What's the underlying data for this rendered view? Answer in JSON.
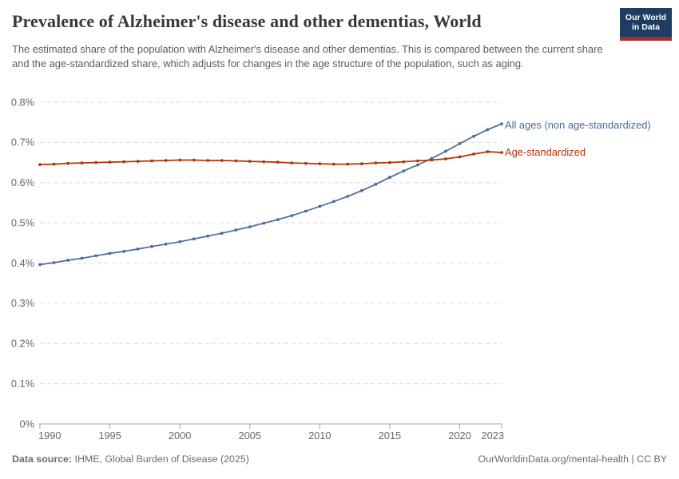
{
  "header": {
    "title": "Prevalence of Alzheimer's disease and other dementias, World",
    "subtitle": "The estimated share of the population with Alzheimer's disease and other dementias. This is compared between the current share and the age-standardized share, which adjusts for changes in the age structure of the population, such as aging.",
    "logo": {
      "line1": "Our World",
      "line2": "in Data",
      "bg_color": "#1d3d63",
      "bar_color": "#a52d32"
    }
  },
  "chart_data": {
    "type": "line",
    "title": "Prevalence of Alzheimer's disease and other dementias, World",
    "unit": "%",
    "grid": "horizontal-dashed",
    "legend_position": "right of line ends",
    "x": [
      1990,
      1991,
      1992,
      1993,
      1994,
      1995,
      1996,
      1997,
      1998,
      1999,
      2000,
      2001,
      2002,
      2003,
      2004,
      2005,
      2006,
      2007,
      2008,
      2009,
      2010,
      2011,
      2012,
      2013,
      2014,
      2015,
      2016,
      2017,
      2018,
      2019,
      2020,
      2021,
      2022,
      2023
    ],
    "series": [
      {
        "name": "All ages (non age-standardized)",
        "color": "#4c6a9c",
        "values": [
          0.396,
          0.401,
          0.407,
          0.412,
          0.418,
          0.424,
          0.429,
          0.435,
          0.441,
          0.447,
          0.453,
          0.46,
          0.467,
          0.474,
          0.482,
          0.49,
          0.499,
          0.508,
          0.518,
          0.529,
          0.541,
          0.553,
          0.566,
          0.58,
          0.596,
          0.613,
          0.629,
          0.644,
          0.66,
          0.678,
          0.697,
          0.715,
          0.732,
          0.746
        ]
      },
      {
        "name": "Age-standardized",
        "color": "#b13507",
        "values": [
          0.645,
          0.646,
          0.648,
          0.649,
          0.65,
          0.651,
          0.652,
          0.653,
          0.654,
          0.655,
          0.656,
          0.656,
          0.655,
          0.655,
          0.654,
          0.653,
          0.652,
          0.651,
          0.649,
          0.648,
          0.647,
          0.646,
          0.646,
          0.647,
          0.649,
          0.65,
          0.652,
          0.654,
          0.656,
          0.659,
          0.664,
          0.671,
          0.677,
          0.675
        ]
      }
    ],
    "ylim": [
      0,
      0.8
    ],
    "yticks": [
      {
        "value": 0,
        "label": "0%"
      },
      {
        "value": 0.1,
        "label": "0.1%"
      },
      {
        "value": 0.2,
        "label": "0.2%"
      },
      {
        "value": 0.3,
        "label": "0.3%"
      },
      {
        "value": 0.4,
        "label": "0.4%"
      },
      {
        "value": 0.5,
        "label": "0.5%"
      },
      {
        "value": 0.6,
        "label": "0.6%"
      },
      {
        "value": 0.7,
        "label": "0.7%"
      },
      {
        "value": 0.8,
        "label": "0.8%"
      }
    ],
    "xticks": [
      {
        "value": 1990,
        "label": "1990"
      },
      {
        "value": 1995,
        "label": "1995"
      },
      {
        "value": 2000,
        "label": "2000"
      },
      {
        "value": 2005,
        "label": "2005"
      },
      {
        "value": 2010,
        "label": "2010"
      },
      {
        "value": 2015,
        "label": "2015"
      },
      {
        "value": 2020,
        "label": "2020"
      },
      {
        "value": 2023,
        "label": "2023"
      }
    ]
  },
  "footer": {
    "source_label": "Data source:",
    "source_text": " IHME, Global Burden of Disease (2025)",
    "attribution": "OurWorldinData.org/mental-health | CC BY"
  }
}
